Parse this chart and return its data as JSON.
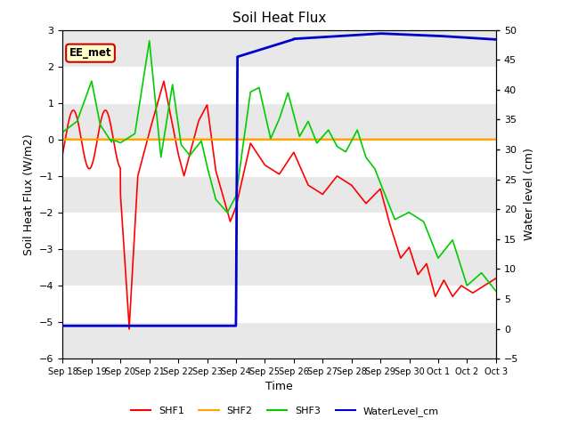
{
  "title": "Soil Heat Flux",
  "ylabel_left": "Soil Heat Flux (W/m2)",
  "ylabel_right": "Water level (cm)",
  "xlabel": "Time",
  "ylim_left": [
    -6.0,
    3.0
  ],
  "ylim_right": [
    -5,
    50
  ],
  "bg_color": "#ffffff",
  "plot_bg_light": "#e8e8e8",
  "plot_bg_dark": "#d0d0d0",
  "annotation_text": "EE_met",
  "annotation_box_color": "#ffffcc",
  "annotation_box_edge": "#cc0000",
  "legend_entries": [
    "SHF1",
    "SHF2",
    "SHF3",
    "WaterLevel_cm"
  ],
  "line_colors": [
    "#ff0000",
    "#ffa500",
    "#00cc00",
    "#0000cc"
  ],
  "xtick_labels": [
    "Sep 18",
    "Sep 19",
    "Sep 20",
    "Sep 21",
    "Sep 22",
    "Sep 23",
    "Sep 24",
    "Sep 25",
    "Sep 26",
    "Sep 27",
    "Sep 28",
    "Sep 29",
    "Sep 30",
    "Oct 1",
    "Oct 2",
    "Oct 3"
  ],
  "shf2_value": 0.0,
  "figsize": [
    6.4,
    4.8
  ],
  "dpi": 100
}
